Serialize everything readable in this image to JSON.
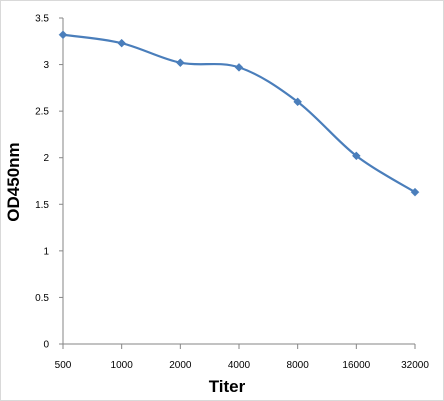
{
  "chart_data": {
    "type": "line",
    "title": "",
    "xlabel": "Titer",
    "ylabel": "OD450nm",
    "categories": [
      "500",
      "1000",
      "2000",
      "4000",
      "8000",
      "16000",
      "32000"
    ],
    "series": [
      {
        "values": [
          3.32,
          3.23,
          3.02,
          2.97,
          2.6,
          2.02,
          1.63
        ]
      }
    ],
    "ylim": [
      0,
      3.5
    ],
    "yticks": [
      "0",
      "0.5",
      "1",
      "1.5",
      "2",
      "2.5",
      "3",
      "3.5"
    ],
    "grid": false,
    "legend": "none",
    "colors": {
      "line": "#4a7ebb",
      "axis": "#868686"
    }
  }
}
